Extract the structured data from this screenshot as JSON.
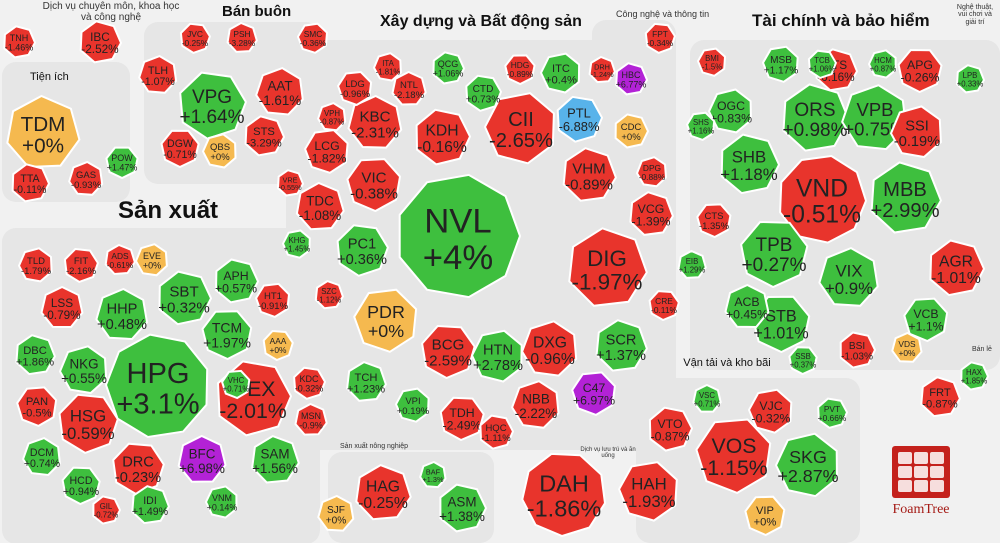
{
  "chart_data": {
    "type": "treemap",
    "title": "",
    "colors": {
      "up": "#3ebf3e",
      "down": "#e8342c",
      "flat": "#f5b94f",
      "ceiling": "#b322d6",
      "floor": "#58b3ea"
    },
    "sectors": [
      {
        "name": "Dịch vụ chuyên môn, khoa học và công nghệ"
      },
      {
        "name": "Bán buôn"
      },
      {
        "name": "Xây dựng và Bất động sản"
      },
      {
        "name": "Công nghệ và thông tin"
      },
      {
        "name": "Tài chính và bảo hiểm"
      },
      {
        "name": "Nghệ thuật, vui chơi và giải trí"
      },
      {
        "name": "Tiện ích"
      },
      {
        "name": "Sản xuất"
      },
      {
        "name": "Vận tải và kho bãi"
      },
      {
        "name": "Sản xuất nông nghiệp"
      },
      {
        "name": "Dịch vụ lưu trú và ăn uống"
      },
      {
        "name": "Bán lẻ"
      }
    ],
    "stocks": [
      {
        "ticker": "NVL",
        "change": "+4%",
        "pct": 4
      },
      {
        "ticker": "HPG",
        "change": "+3.1%",
        "pct": 3.1
      },
      {
        "ticker": "VND",
        "change": "-0.51%",
        "pct": -0.51
      },
      {
        "ticker": "DIG",
        "change": "-1.97%",
        "pct": -1.97
      },
      {
        "ticker": "CII",
        "change": "-2.65%",
        "pct": -2.65
      },
      {
        "ticker": "GEX",
        "change": "-2.01%",
        "pct": -2.01
      },
      {
        "ticker": "DAH",
        "change": "-1.86%",
        "pct": -1.86
      },
      {
        "ticker": "VOS",
        "change": "-1.15%",
        "pct": -1.15
      },
      {
        "ticker": "ORS",
        "change": "+0.98%",
        "pct": 0.98
      },
      {
        "ticker": "VPB",
        "change": "+0.75%",
        "pct": 0.75
      },
      {
        "ticker": "TPB",
        "change": "+0.27%",
        "pct": 0.27
      },
      {
        "ticker": "MBB",
        "change": "+2.99%",
        "pct": 2.99
      },
      {
        "ticker": "SKG",
        "change": "+2.87%",
        "pct": 2.87
      },
      {
        "ticker": "VPG",
        "change": "+1.64%",
        "pct": 1.64
      },
      {
        "ticker": "TDM",
        "change": "+0%",
        "pct": 0
      },
      {
        "ticker": "PDR",
        "change": "+0%",
        "pct": 0
      },
      {
        "ticker": "SHB",
        "change": "+1.18%",
        "pct": 1.18
      },
      {
        "ticker": "VIX",
        "change": "+0.9%",
        "pct": 0.9
      },
      {
        "ticker": "STB",
        "change": "+1.01%",
        "pct": 1.01
      },
      {
        "ticker": "AGR",
        "change": "-1.01%",
        "pct": -1.01
      },
      {
        "ticker": "SSI",
        "change": "-0.19%",
        "pct": -0.19
      },
      {
        "ticker": "HSG",
        "change": "-0.59%",
        "pct": -0.59
      },
      {
        "ticker": "HAG",
        "change": "-0.25%",
        "pct": -0.25
      },
      {
        "ticker": "HAH",
        "change": "-1.93%",
        "pct": -1.93
      },
      {
        "ticker": "KDH",
        "change": "-0.16%",
        "pct": -0.16
      },
      {
        "ticker": "KBC",
        "change": "-2.31%",
        "pct": -2.31
      },
      {
        "ticker": "VIC",
        "change": "-0.38%",
        "pct": -0.38
      },
      {
        "ticker": "VHM",
        "change": "-0.89%",
        "pct": -0.89
      },
      {
        "ticker": "DXG",
        "change": "-0.96%",
        "pct": -0.96
      },
      {
        "ticker": "BCG",
        "change": "-2.59%",
        "pct": -2.59
      },
      {
        "ticker": "SCR",
        "change": "+1.37%",
        "pct": 1.37
      },
      {
        "ticker": "HTN",
        "change": "+2.78%",
        "pct": 2.78
      },
      {
        "ticker": "PTL",
        "change": "-6.88%",
        "pct": -6.88
      },
      {
        "ticker": "BFC",
        "change": "+6.98%",
        "pct": 6.98
      },
      {
        "ticker": "C47",
        "change": "+6.97%",
        "pct": 6.97
      },
      {
        "ticker": "HBC",
        "change": "+6.77%",
        "pct": 6.77
      },
      {
        "ticker": "AAT",
        "change": "-1.61%",
        "pct": -1.61
      },
      {
        "ticker": "APG",
        "change": "-0.26%",
        "pct": -0.26
      },
      {
        "ticker": "FTS",
        "change": "-0.16%",
        "pct": -0.16
      },
      {
        "ticker": "OGC",
        "change": "+0.83%",
        "pct": 0.83
      },
      {
        "ticker": "PC1",
        "change": "+0.36%",
        "pct": 0.36
      },
      {
        "ticker": "TDC",
        "change": "-1.08%",
        "pct": -1.08
      },
      {
        "ticker": "LCG",
        "change": "-1.82%",
        "pct": -1.82
      },
      {
        "ticker": "SBT",
        "change": "+0.32%",
        "pct": 0.32
      },
      {
        "ticker": "HHP",
        "change": "+0.48%",
        "pct": 0.48
      },
      {
        "ticker": "TCM",
        "change": "+1.97%",
        "pct": 1.97
      },
      {
        "ticker": "APH",
        "change": "+0.57%",
        "pct": 0.57
      },
      {
        "ticker": "NKG",
        "change": "+0.55%",
        "pct": 0.55
      },
      {
        "ticker": "DRC",
        "change": "-0.23%",
        "pct": -0.23
      },
      {
        "ticker": "SAM",
        "change": "+1.56%",
        "pct": 1.56
      },
      {
        "ticker": "VJC",
        "change": "-0.32%",
        "pct": -0.32
      },
      {
        "ticker": "VTO",
        "change": "-0.87%",
        "pct": -0.87
      },
      {
        "ticker": "ACB",
        "change": "+0.45%",
        "pct": 0.45
      },
      {
        "ticker": "VCB",
        "change": "+1.1%",
        "pct": 1.1
      },
      {
        "ticker": "FRT",
        "change": "-0.87%",
        "pct": -0.87
      },
      {
        "ticker": "NBB",
        "change": "-2.22%",
        "pct": -2.22
      },
      {
        "ticker": "TDH",
        "change": "-2.49%",
        "pct": -2.49
      },
      {
        "ticker": "VCG",
        "change": "-1.39%",
        "pct": -1.39
      },
      {
        "ticker": "ITC",
        "change": "+0.4%",
        "pct": 0.4
      },
      {
        "ticker": "CTD",
        "change": "+0.73%",
        "pct": 0.73
      },
      {
        "ticker": "NTL",
        "change": "-2.18%",
        "pct": -2.18
      },
      {
        "ticker": "LDG",
        "change": "-0.96%",
        "pct": -0.96
      },
      {
        "ticker": "IBC",
        "change": "-2.52%",
        "pct": -2.52
      },
      {
        "ticker": "TLH",
        "change": "-1.07%",
        "pct": -1.07
      },
      {
        "ticker": "DGW",
        "change": "-0.71%",
        "pct": -0.71
      },
      {
        "ticker": "STS",
        "change": "-3.29%",
        "pct": -3.29
      },
      {
        "ticker": "QBS",
        "change": "+0%",
        "pct": 0
      },
      {
        "ticker": "JVC",
        "change": "-0.25%",
        "pct": -0.25
      },
      {
        "ticker": "PSH",
        "change": "-3.28%",
        "pct": -3.28
      },
      {
        "ticker": "SMC",
        "change": "-0.36%",
        "pct": -0.36
      },
      {
        "ticker": "ASM",
        "change": "+1.38%",
        "pct": 1.38
      },
      {
        "ticker": "SJF",
        "change": "+0%",
        "pct": 0
      },
      {
        "ticker": "VIP",
        "change": "+0%",
        "pct": 0
      },
      {
        "ticker": "CDC",
        "change": "+0%",
        "pct": 0
      },
      {
        "ticker": "EVE",
        "change": "+0%",
        "pct": 0
      },
      {
        "ticker": "AAA",
        "change": "+0%",
        "pct": 0
      },
      {
        "ticker": "TCH",
        "change": "+1.23%",
        "pct": 1.23
      },
      {
        "ticker": "VPI",
        "change": "+0.19%",
        "pct": 0.19
      },
      {
        "ticker": "HQC",
        "change": "-1.11%",
        "pct": -1.11
      },
      {
        "ticker": "LSS",
        "change": "-0.79%",
        "pct": -0.79
      },
      {
        "ticker": "PAN",
        "change": "-0.5%",
        "pct": -0.5
      },
      {
        "ticker": "DBC",
        "change": "+1.86%",
        "pct": 1.86
      },
      {
        "ticker": "DCM",
        "change": "+0.74%",
        "pct": 0.74
      },
      {
        "ticker": "HCD",
        "change": "+0.94%",
        "pct": 0.94
      },
      {
        "ticker": "IDI",
        "change": "+1.49%",
        "pct": 1.49
      },
      {
        "ticker": "VNM",
        "change": "+0.14%",
        "pct": 0.14
      },
      {
        "ticker": "KDC",
        "change": "-0.32%",
        "pct": -0.32
      },
      {
        "ticker": "MSN",
        "change": "-0.9%",
        "pct": -0.9
      },
      {
        "ticker": "HT1",
        "change": "-0.91%",
        "pct": -0.91
      },
      {
        "ticker": "TTA",
        "change": "-0.11%",
        "pct": -0.11
      },
      {
        "ticker": "GAS",
        "change": "-0.93%",
        "pct": -0.93
      },
      {
        "ticker": "POW",
        "change": "+1.47%",
        "pct": 1.47
      },
      {
        "ticker": "TNH",
        "change": "-1.46%",
        "pct": -1.46
      },
      {
        "ticker": "TLD",
        "change": "-1.79%",
        "pct": -1.79
      },
      {
        "ticker": "FIT",
        "change": "-2.16%",
        "pct": -2.16
      },
      {
        "ticker": "ADS",
        "change": "-0.61%",
        "pct": -0.61
      },
      {
        "ticker": "MSB",
        "change": "+1.17%",
        "pct": 1.17
      },
      {
        "ticker": "BSI",
        "change": "-1.03%",
        "pct": -1.03
      },
      {
        "ticker": "VDS",
        "change": "+0%",
        "pct": 0
      },
      {
        "ticker": "CTS",
        "change": "-1.35%",
        "pct": -1.35
      },
      {
        "ticker": "GIL",
        "change": "-0.72%",
        "pct": -0.72
      },
      {
        "ticker": "DPG",
        "change": "-0.88%",
        "pct": -0.88
      },
      {
        "ticker": "CRE",
        "change": "-0.11%",
        "pct": -0.11
      },
      {
        "ticker": "SZC",
        "change": "-1.12%",
        "pct": -1.12
      },
      {
        "ticker": "KHG",
        "change": "+1.45%",
        "pct": 1.45
      },
      {
        "ticker": "PVT",
        "change": "+0.66%",
        "pct": 0.66
      },
      {
        "ticker": "VSC",
        "change": "+0.71%",
        "pct": 0.71
      },
      {
        "ticker": "VHC",
        "change": "+0.71%",
        "pct": 0.71
      },
      {
        "ticker": "VRE",
        "change": "-0.55%",
        "pct": -0.55
      },
      {
        "ticker": "VPH",
        "change": "-0.87%",
        "pct": -0.87
      },
      {
        "ticker": "SSB",
        "change": "+0.37%",
        "pct": 0.37
      },
      {
        "ticker": "LPB",
        "change": "+0.33%",
        "pct": 0.33
      },
      {
        "ticker": "HCM",
        "change": "+0.87%",
        "pct": 0.87
      },
      {
        "ticker": "TCB",
        "change": "+1.06%",
        "pct": 1.06
      },
      {
        "ticker": "EIB",
        "change": "+1.29%",
        "pct": 1.29
      },
      {
        "ticker": "SHS",
        "change": "+1.16%",
        "pct": 1.16
      },
      {
        "ticker": "HAX",
        "change": "+1.85%",
        "pct": 1.85
      },
      {
        "ticker": "BAF",
        "change": "+1.3%",
        "pct": 1.3
      },
      {
        "ticker": "HDG",
        "change": "-0.89%",
        "pct": -0.89
      },
      {
        "ticker": "QCG",
        "change": "+1.06%",
        "pct": 1.06
      },
      {
        "ticker": "ITA",
        "change": "-1.81%",
        "pct": -1.81
      },
      {
        "ticker": "FPT",
        "change": "-0.34%",
        "pct": -0.34
      },
      {
        "ticker": "DRH",
        "change": "-1.24%",
        "pct": -1.24
      },
      {
        "ticker": "BMI",
        "change": "-1.5%",
        "pct": -1.5
      }
    ]
  }
}
